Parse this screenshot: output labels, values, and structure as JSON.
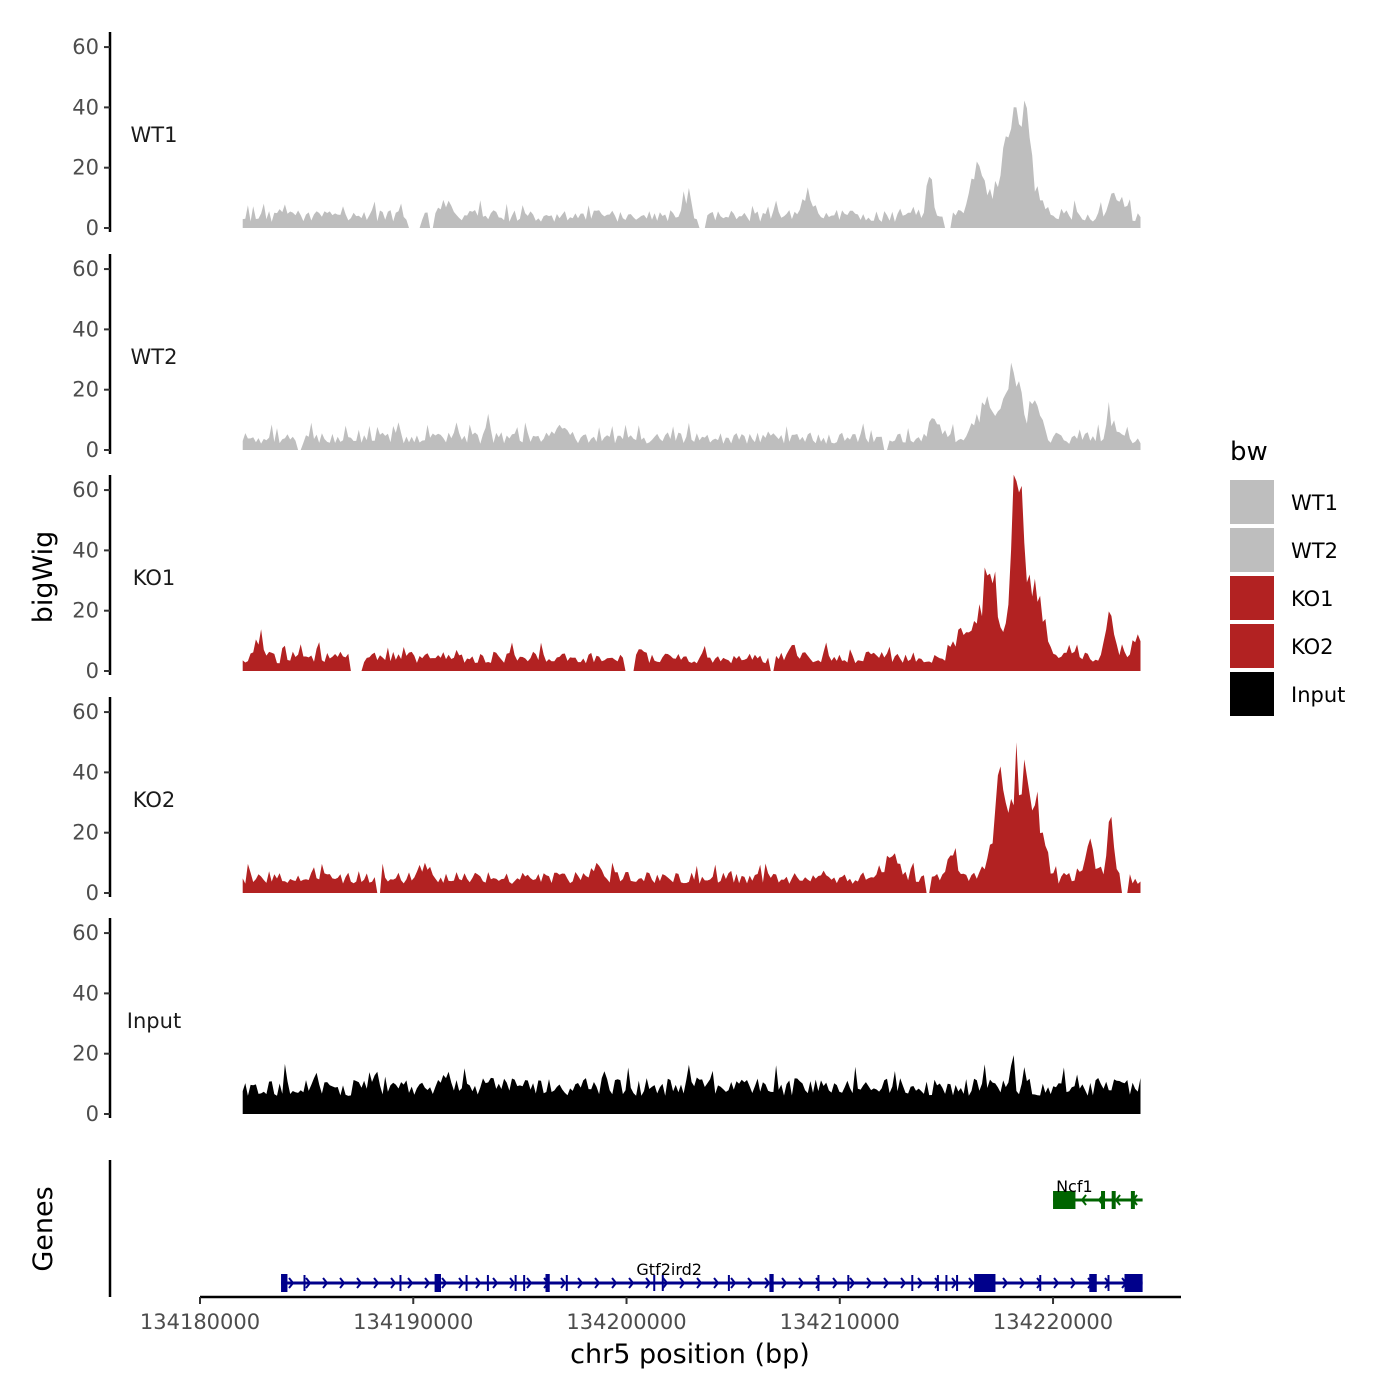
{
  "chart_data": {
    "type": "area",
    "title": "",
    "xlabel": "chr5 position (bp)",
    "ylabel": "bigWig",
    "genes_label": "Genes",
    "chromosome": "chr5",
    "xlim": [
      134180000,
      134226000
    ],
    "ylim": [
      0,
      65
    ],
    "x_ticks": [
      134180000,
      134190000,
      134200000,
      134210000,
      134220000
    ],
    "x_tick_labels": [
      "134180000",
      "134190000",
      "134200000",
      "134210000",
      "134220000"
    ],
    "y_ticks": [
      0,
      20,
      40,
      60
    ],
    "y_tick_labels": [
      "0",
      "20",
      "40",
      "60"
    ],
    "signal_range": [
      134182000,
      134224100
    ],
    "legend": {
      "title": "bw",
      "position": "right",
      "entries": [
        {
          "label": "WT1",
          "color": "#bebebe"
        },
        {
          "label": "WT2",
          "color": "#bebebe"
        },
        {
          "label": "KO1",
          "color": "#b22222"
        },
        {
          "label": "KO2",
          "color": "#b22222"
        },
        {
          "label": "Input",
          "color": "#000000"
        }
      ]
    },
    "series": [
      {
        "name": "WT1",
        "color": "#bebebe",
        "baseline": 2,
        "noise": 4,
        "seed": 11,
        "peaks": [
          [
            134184000,
            3,
            300
          ],
          [
            134191500,
            4,
            500
          ],
          [
            134202800,
            8,
            250
          ],
          [
            134208500,
            6,
            400
          ],
          [
            134214200,
            10,
            250
          ],
          [
            134216500,
            18,
            450
          ],
          [
            134218300,
            30,
            900
          ],
          [
            134218700,
            14,
            150
          ],
          [
            134223000,
            8,
            400
          ]
        ],
        "gaps": [
          [
            134189800,
            134190300
          ],
          [
            134190700,
            134191000
          ],
          [
            134203400,
            134203700
          ],
          [
            134214900,
            134215200
          ]
        ],
        "max_points": [
          [
            134218300,
            40
          ],
          [
            134217900,
            30
          ]
        ]
      },
      {
        "name": "WT2",
        "color": "#bebebe",
        "baseline": 2,
        "noise": 4,
        "seed": 23,
        "peaks": [
          [
            134193500,
            8,
            120
          ],
          [
            134197000,
            3,
            400
          ],
          [
            134214500,
            6,
            350
          ],
          [
            134216800,
            12,
            500
          ],
          [
            134218100,
            18,
            700
          ],
          [
            134219200,
            10,
            300
          ],
          [
            134222700,
            6,
            300
          ]
        ],
        "gaps": [
          [
            134184500,
            134184800
          ],
          [
            134212000,
            134212300
          ]
        ],
        "max_points": [
          [
            134218000,
            29
          ],
          [
            134193500,
            12
          ]
        ]
      },
      {
        "name": "KO1",
        "color": "#b22222",
        "baseline": 2.5,
        "noise": 4,
        "seed": 37,
        "peaks": [
          [
            134182800,
            5,
            200
          ],
          [
            134200700,
            4,
            150
          ],
          [
            134207800,
            4,
            150
          ],
          [
            134215800,
            10,
            500
          ],
          [
            134217000,
            24,
            600
          ],
          [
            134218300,
            50,
            350
          ],
          [
            134219000,
            22,
            700
          ],
          [
            134222700,
            16,
            250
          ],
          [
            134224000,
            6,
            200
          ]
        ],
        "gaps": [
          [
            134187000,
            134187600
          ],
          [
            134199900,
            134200400
          ],
          [
            134206700,
            134207000
          ]
        ],
        "max_points": [
          [
            134218300,
            63
          ],
          [
            134217300,
            33
          ]
        ]
      },
      {
        "name": "KO2",
        "color": "#b22222",
        "baseline": 3,
        "noise": 4,
        "seed": 53,
        "peaks": [
          [
            134190500,
            3,
            400
          ],
          [
            134198500,
            3,
            500
          ],
          [
            134212500,
            9,
            400
          ],
          [
            134215200,
            8,
            300
          ],
          [
            134217500,
            26,
            500
          ],
          [
            134218500,
            38,
            500
          ],
          [
            134219300,
            20,
            400
          ],
          [
            134221700,
            12,
            300
          ],
          [
            134222700,
            16,
            250
          ]
        ],
        "gaps": [
          [
            134188200,
            134188500
          ],
          [
            134214000,
            134214300
          ],
          [
            134223200,
            134223600
          ]
        ],
        "max_points": [
          [
            134218300,
            50
          ],
          [
            134217500,
            42
          ]
        ]
      },
      {
        "name": "Input",
        "color": "#000000",
        "baseline": 6,
        "noise": 6,
        "seed": 71,
        "peaks": [
          [
            134188000,
            4,
            200
          ],
          [
            134203300,
            3,
            300
          ],
          [
            134218000,
            5,
            250
          ]
        ],
        "gaps": [],
        "max_points": [
          [
            134218000,
            16
          ],
          [
            134188300,
            14
          ]
        ]
      }
    ],
    "genes": [
      {
        "name": "Ncf1",
        "color": "#006400",
        "row": 0,
        "start": 134220000,
        "end": 134224200,
        "strand": "-",
        "exons": [
          [
            134220000,
            134221050
          ],
          [
            134222250,
            134222350
          ],
          [
            134222750,
            134222850
          ],
          [
            134223650,
            134223750
          ]
        ],
        "label_x": 134221000
      },
      {
        "name": "Gtf2ird2",
        "color": "#00008b",
        "row": 1,
        "start": 134183800,
        "end": 134224200,
        "strand": "+",
        "exons": [
          [
            134183800,
            134184100
          ],
          [
            134191000,
            134191300
          ],
          [
            134196200,
            134196400
          ],
          [
            134206700,
            134206900
          ],
          [
            134216300,
            134217300
          ],
          [
            134221700,
            134222050
          ],
          [
            134223350,
            134224200
          ]
        ],
        "thin_exons": [
          134184900,
          134189400,
          134192500,
          134193500,
          134194800,
          134195200,
          134197200,
          134201300,
          134201700,
          134204800,
          134209000,
          134210400,
          134213400,
          134214600,
          134215000,
          134215500,
          134219400,
          134222600
        ],
        "label_x": 134202000
      }
    ]
  }
}
